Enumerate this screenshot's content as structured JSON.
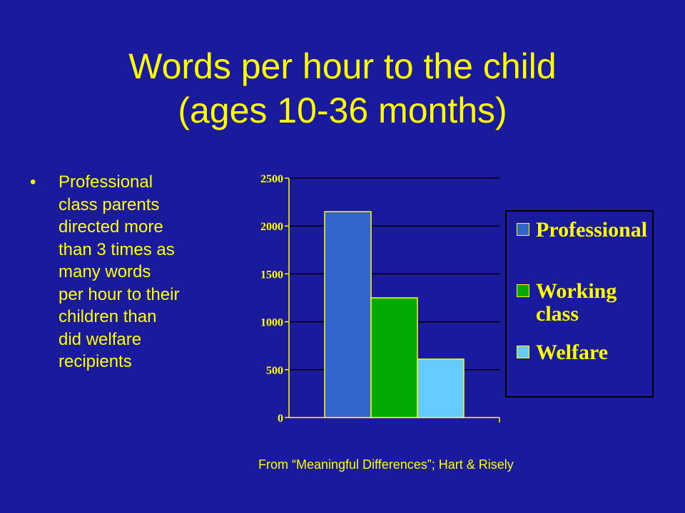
{
  "slide": {
    "title_line1": "Words per hour to the child",
    "title_line2": "(ages 10-36 months)",
    "bullet_marker": "•",
    "bullet_lines": [
      "Professional",
      "class parents",
      "directed more",
      "than 3 times as",
      "many words",
      "per hour to their",
      "children than",
      "did welfare",
      "recipients"
    ],
    "source": "From “Meaningful Differences”; Hart & Risely"
  },
  "chart_data": {
    "type": "bar",
    "categories": [
      ""
    ],
    "series": [
      {
        "name": "Professional",
        "values": [
          2150
        ],
        "color": "#3366cc"
      },
      {
        "name": "Working class",
        "values": [
          1250
        ],
        "color": "#00aa00"
      },
      {
        "name": "Welfare",
        "values": [
          610
        ],
        "color": "#66ccff"
      }
    ],
    "ylim": [
      0,
      2500
    ],
    "yticks": [
      0,
      500,
      1000,
      1500,
      2000,
      2500
    ],
    "grid": true,
    "legend_position": "right"
  },
  "legend": {
    "items": [
      {
        "line1": "Professional",
        "line2": "",
        "color": "#3366cc"
      },
      {
        "line1": "Working",
        "line2": "class",
        "color": "#00aa00"
      },
      {
        "line1": "Welfare",
        "line2": "",
        "color": "#66ccff"
      }
    ]
  }
}
